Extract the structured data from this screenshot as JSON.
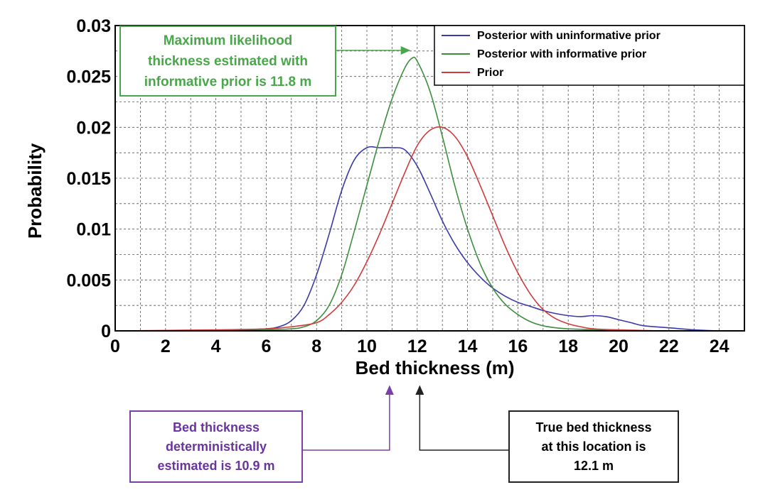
{
  "chart_data": {
    "type": "line",
    "title": "",
    "xlabel": "Bed thickness (m)",
    "ylabel": "Probability",
    "xlim": [
      0,
      25
    ],
    "ylim": [
      0,
      0.03
    ],
    "x_ticks": [
      "0",
      "2",
      "4",
      "6",
      "8",
      "10",
      "12",
      "14",
      "16",
      "18",
      "20",
      "22",
      "24"
    ],
    "y_ticks": [
      "0",
      "0.005",
      "0.01",
      "0.015",
      "0.02",
      "0.025",
      "0.03"
    ],
    "grid": true,
    "legend_position": "top-right",
    "series": [
      {
        "name": "Posterior with uninformative prior",
        "color": "#3a3aa8",
        "x": [
          0,
          3,
          5,
          6,
          6.5,
          7,
          7.5,
          8,
          8.5,
          9,
          9.5,
          10,
          10.5,
          11,
          11.5,
          12,
          12.5,
          13,
          13.5,
          14,
          14.5,
          15,
          15.5,
          16,
          16.5,
          17,
          17.5,
          18,
          18.5,
          19,
          19.5,
          20,
          20.5,
          21,
          22,
          23,
          24,
          25
        ],
        "y": [
          0,
          0,
          0.0001,
          0.0002,
          0.0004,
          0.001,
          0.0025,
          0.0055,
          0.0095,
          0.0138,
          0.0168,
          0.018,
          0.018,
          0.018,
          0.0178,
          0.0162,
          0.0136,
          0.0108,
          0.0085,
          0.0067,
          0.0053,
          0.0042,
          0.0034,
          0.0028,
          0.0024,
          0.002,
          0.0017,
          0.0015,
          0.0014,
          0.0015,
          0.0014,
          0.0011,
          0.0008,
          0.0005,
          0.0003,
          0.0001,
          0,
          0
        ]
      },
      {
        "name": "Posterior with informative prior",
        "color": "#3e8e3e",
        "x": [
          0,
          4,
          6,
          7,
          7.5,
          8,
          8.5,
          9,
          9.5,
          10,
          10.5,
          11,
          11.5,
          11.8,
          12,
          12.5,
          13,
          13.5,
          14,
          14.5,
          15,
          15.5,
          16,
          16.5,
          17,
          17.5,
          18,
          19,
          20,
          22,
          25
        ],
        "y": [
          0,
          0,
          0.0001,
          0.0002,
          0.0004,
          0.001,
          0.0025,
          0.0055,
          0.0098,
          0.0143,
          0.0188,
          0.0228,
          0.0258,
          0.0268,
          0.0265,
          0.0236,
          0.0191,
          0.0142,
          0.01,
          0.0066,
          0.0042,
          0.0026,
          0.0016,
          0.0009,
          0.0005,
          0.0003,
          0.0002,
          0.0001,
          0,
          0,
          0
        ]
      },
      {
        "name": "Prior",
        "color": "#d03a3a",
        "x": [
          0,
          4,
          6,
          7,
          8,
          8.5,
          9,
          9.5,
          10,
          10.5,
          11,
          11.5,
          12,
          12.5,
          13,
          13.5,
          14,
          14.5,
          15,
          15.5,
          16,
          16.5,
          17,
          17.5,
          18,
          18.5,
          19,
          20,
          22,
          25
        ],
        "y": [
          0,
          0.0001,
          0.0002,
          0.0004,
          0.0008,
          0.0016,
          0.0028,
          0.0045,
          0.0068,
          0.0095,
          0.0125,
          0.0155,
          0.0182,
          0.0197,
          0.02,
          0.0191,
          0.0171,
          0.0143,
          0.0113,
          0.0083,
          0.0057,
          0.0036,
          0.0021,
          0.0012,
          0.0007,
          0.0004,
          0.0002,
          0.0001,
          0,
          0
        ]
      }
    ],
    "annotations": [
      {
        "id": "ml",
        "color": "#4aa64a",
        "lines": [
          "Maximum likelihood",
          "thickness estimated  with",
          "informative prior is 11.8 m"
        ],
        "arrow_to_x": 11.8,
        "arrow_to_y": 0.027
      },
      {
        "id": "det",
        "color": "#7b3fa6",
        "lines": [
          "Bed thickness",
          "deterministically",
          "estimated  is 10.9 m"
        ],
        "arrow_to_x": 10.9
      },
      {
        "id": "true",
        "color": "#222222",
        "lines": [
          "True bed thickness",
          "at this location is",
          "12.1 m"
        ],
        "arrow_to_x": 12.1
      }
    ]
  }
}
